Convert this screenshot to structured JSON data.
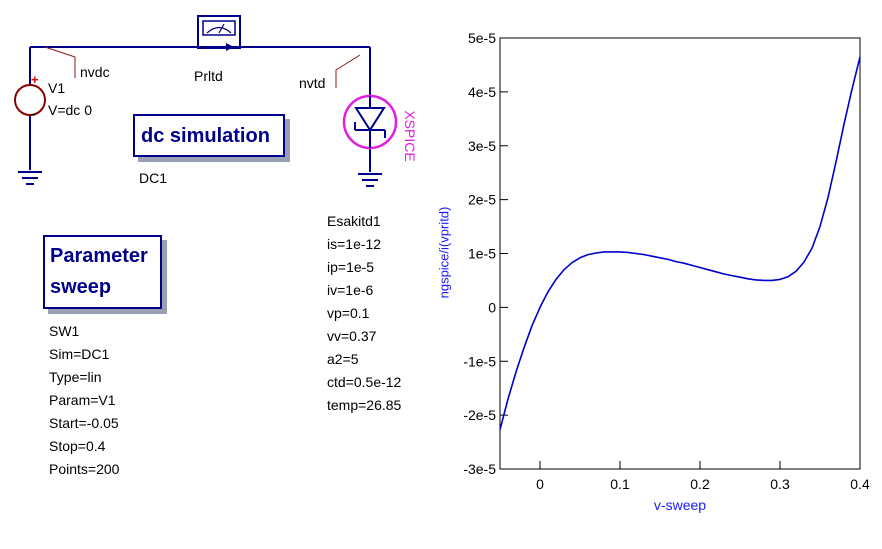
{
  "schematic": {
    "v1": {
      "name": "V1",
      "value": "V=dc 0",
      "plus": "+",
      "minus": "-"
    },
    "nodes": {
      "nvdc": "nvdc",
      "nvtd": "nvtd"
    },
    "probe": {
      "name": "Prltd"
    },
    "diode": {
      "model_label": "XSPICE"
    },
    "dc_sim": {
      "title": "dc simulation",
      "name": "DC1"
    },
    "sweep": {
      "title_line1": "Parameter",
      "title_line2": "sweep",
      "props": [
        "SW1",
        "Sim=DC1",
        "Type=lin",
        "Param=V1",
        "Start=-0.05",
        "Stop=0.4",
        "Points=200"
      ]
    },
    "esaki": {
      "props": [
        "Esakitd1",
        "is=1e-12",
        "ip=1e-5",
        "iv=1e-6",
        "vp=0.1",
        "vv=0.37",
        "a2=5",
        "ctd=0.5e-12",
        "temp=26.85"
      ]
    },
    "colors": {
      "wire": "#00008b",
      "box_text": "#00008b",
      "xspice": "#e020e0",
      "node_tick": "#8b1a1a",
      "source": "#8b0000"
    }
  },
  "chart_data": {
    "type": "line",
    "xlabel": "v-sweep",
    "ylabel": "ngspice/i(vpritd)",
    "xlim": [
      -0.05,
      0.4
    ],
    "ylim": [
      -3e-05,
      5e-05
    ],
    "x_ticks": [
      "0",
      "0.1",
      "0.2",
      "0.3",
      "0.4"
    ],
    "x_tick_values": [
      0,
      0.1,
      0.2,
      0.3,
      0.4
    ],
    "y_ticks": [
      "-3e-5",
      "-2e-5",
      "-1e-5",
      "0",
      "1e-5",
      "2e-5",
      "3e-5",
      "4e-5",
      "5e-5"
    ],
    "y_tick_values": [
      -3e-05,
      -2e-05,
      -1e-05,
      0,
      1e-05,
      2e-05,
      3e-05,
      4e-05,
      5e-05
    ],
    "series_color": "#0000cc",
    "series": [
      {
        "x": [
          -0.05,
          -0.04,
          -0.03,
          -0.02,
          -0.01,
          0,
          0.01,
          0.02,
          0.03,
          0.04,
          0.05,
          0.06,
          0.07,
          0.08,
          0.09,
          0.1,
          0.11,
          0.12,
          0.13,
          0.14,
          0.15,
          0.16,
          0.17,
          0.18,
          0.19,
          0.2,
          0.21,
          0.22,
          0.23,
          0.24,
          0.25,
          0.26,
          0.27,
          0.28,
          0.29,
          0.3,
          0.31,
          0.32,
          0.33,
          0.34,
          0.35,
          0.36,
          0.37,
          0.38,
          0.39,
          0.4
        ],
        "y": [
          -2.27e-05,
          -1.7e-05,
          -1.2e-05,
          -7.5e-06,
          -3.4e-06,
          0,
          2.9e-06,
          5.2e-06,
          7e-06,
          8.3e-06,
          9.2e-06,
          9.8e-06,
          1.01e-05,
          1.03e-05,
          1.03e-05,
          1.03e-05,
          1.02e-05,
          1e-05,
          9.8e-06,
          9.5e-06,
          9.2e-06,
          8.9e-06,
          8.5e-06,
          8.2e-06,
          7.8e-06,
          7.4e-06,
          7e-06,
          6.6e-06,
          6.2e-06,
          5.9e-06,
          5.6e-06,
          5.3e-06,
          5.1e-06,
          5e-06,
          5e-06,
          5.2e-06,
          5.7e-06,
          6.7e-06,
          8.4e-06,
          1.1e-05,
          1.5e-05,
          2.04e-05,
          2.7e-05,
          3.4e-05,
          4.05e-05,
          4.65e-05
        ]
      }
    ]
  }
}
